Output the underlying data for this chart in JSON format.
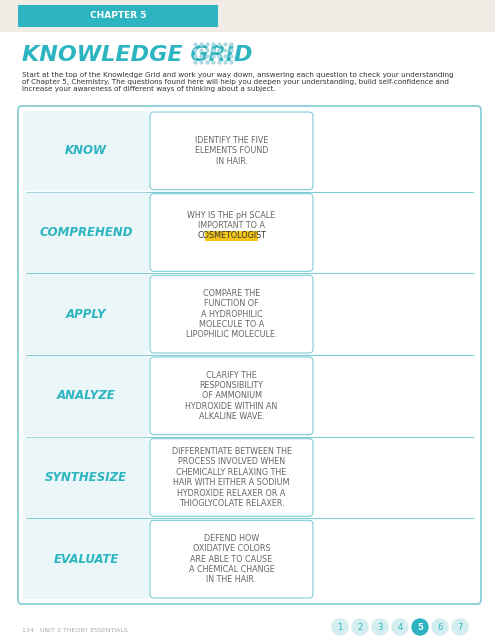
{
  "chapter_label": "CHAPTER 5",
  "chapter_bg": "#2cb5c0",
  "page_bg": "#f5f0eb",
  "title": "KNOWLEDGE GRID",
  "title_color": "#2cb5c0",
  "intro_text": "Start at the top of the Knowledge Grid and work your way down, answering each question to check your understanding\nof Chapter 5, Chemistry. The questions found here will help you deepen your understanding, build self-confidence and\nincrease your awareness of different ways of thinking about a subject.",
  "rows": [
    {
      "label": "KNOW",
      "text": "IDENTIFY THE FIVE\nELEMENTS FOUND\nIN HAIR.",
      "highlight": null
    },
    {
      "label": "COMPREHEND",
      "text": "WHY IS THE pH SCALE\nIMPORTANT TO A\nCOSMETOLOGIST",
      "highlight": "COSMETOLOGIST"
    },
    {
      "label": "APPLY",
      "text": "COMPARE THE\nFUNCTION OF\nA HYDROPHILIC\nMOLECULE TO A\nLIPOPHILIC MOLECULE.",
      "highlight": null
    },
    {
      "label": "ANALYZE",
      "text": "CLARIFY THE\nRESPONSIBILITY\nOF AMMONIUM\nHYDROXIDE WITHIN AN\nALKALINE WAVE.",
      "highlight": null
    },
    {
      "label": "SYNTHESIZE",
      "text": "DIFFERENTIATE BETWEEN THE\nPROCESS INVOLVED WHEN\nCHEMICALLY RELAXING THE\nHAIR WITH EITHER A SODIUM\nHYDROXIDE RELAXER OR A\nTHIOGLYCOLATE RELAXER.",
      "highlight": null
    },
    {
      "label": "EVALUATE",
      "text": "DEFEND HOW\nOXIDATIVE COLORS\nARE ABLE TO CAUSE\nA CHEMICAL CHANGE\nIN THE HAIR.",
      "highlight": null
    }
  ],
  "grid_border_color": "#7eccd4",
  "label_color": "#2cb5c0",
  "text_color": "#666666",
  "highlight_bg": "#f5c518",
  "page_num": "5",
  "page_footer_left": "134   UNIT 3 THEORY ESSENTIALS",
  "page_numbers": [
    "1",
    "2",
    "3",
    "4",
    "5",
    "6",
    "7"
  ],
  "active_page": "5",
  "active_page_bg": "#2cb5c0",
  "inactive_page_bg": "#d4eef0",
  "inactive_page_color": "#2cb5c0"
}
